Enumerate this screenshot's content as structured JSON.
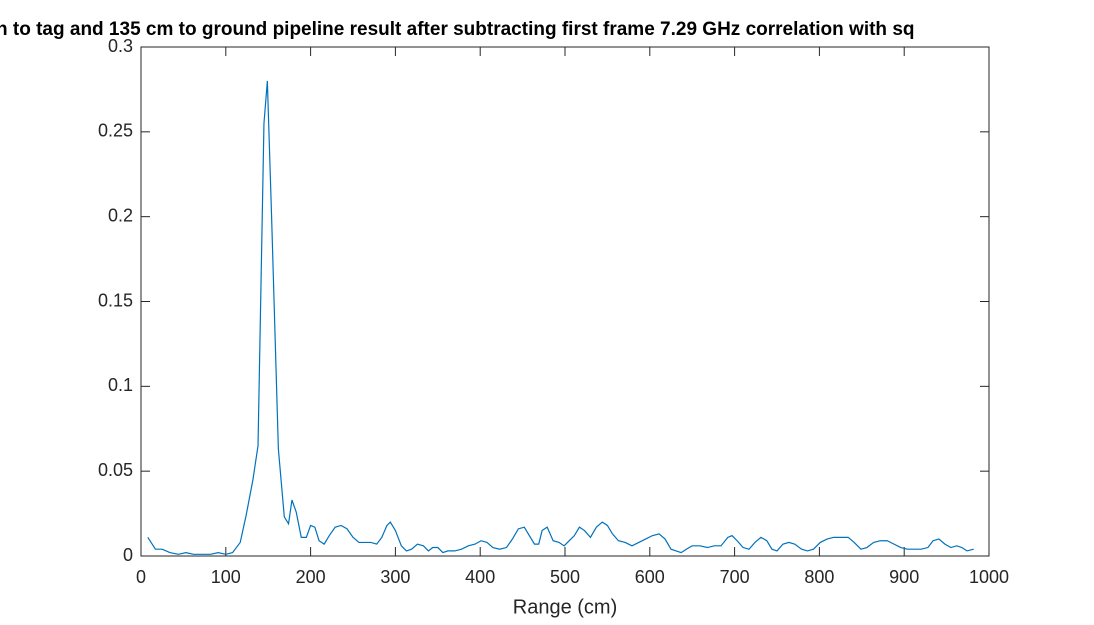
{
  "chart_data": {
    "type": "line",
    "title": "n to tag and 135 cm to ground pipeline result after subtracting first frame 7.29 GHz correlation with sq",
    "x_label": "Range (cm)",
    "x": [
      8,
      17,
      25,
      34,
      44,
      53,
      62,
      72,
      82,
      91,
      100,
      108,
      117,
      124,
      132,
      138,
      145,
      149,
      154,
      162,
      169,
      174,
      178,
      183,
      189,
      195,
      200,
      205,
      210,
      216,
      222,
      229,
      236,
      243,
      250,
      257,
      264,
      271,
      278,
      284,
      290,
      294,
      300,
      307,
      313,
      319,
      326,
      333,
      339,
      344,
      350,
      356,
      362,
      370,
      378,
      386,
      394,
      401,
      408,
      415,
      423,
      431,
      438,
      445,
      452,
      458,
      464,
      469,
      473,
      479,
      486,
      493,
      499,
      505,
      511,
      517,
      523,
      530,
      537,
      544,
      550,
      556,
      563,
      571,
      579,
      587,
      595,
      603,
      611,
      618,
      625,
      631,
      637,
      643,
      650,
      659,
      668,
      676,
      684,
      692,
      697,
      703,
      710,
      717,
      724,
      731,
      738,
      744,
      750,
      757,
      764,
      771,
      779,
      786,
      793,
      801,
      809,
      817,
      826,
      834,
      841,
      849,
      856,
      864,
      872,
      880,
      888,
      896,
      904,
      912,
      920,
      928,
      934,
      941,
      948,
      955,
      962,
      968,
      974,
      982
    ],
    "series": [
      {
        "color": "#0072bd",
        "values": [
          0.011,
          0.004,
          0.004,
          0.002,
          0.001,
          0.002,
          0.001,
          0.001,
          0.001,
          0.002,
          0.001,
          0.002,
          0.008,
          0.024,
          0.045,
          0.065,
          0.255,
          0.28,
          0.2,
          0.063,
          0.023,
          0.019,
          0.033,
          0.026,
          0.011,
          0.011,
          0.018,
          0.017,
          0.009,
          0.007,
          0.012,
          0.017,
          0.018,
          0.016,
          0.011,
          0.008,
          0.008,
          0.008,
          0.007,
          0.011,
          0.018,
          0.02,
          0.015,
          0.006,
          0.003,
          0.004,
          0.007,
          0.006,
          0.003,
          0.005,
          0.005,
          0.002,
          0.003,
          0.003,
          0.004,
          0.006,
          0.007,
          0.009,
          0.008,
          0.005,
          0.004,
          0.005,
          0.01,
          0.016,
          0.017,
          0.012,
          0.007,
          0.007,
          0.015,
          0.017,
          0.009,
          0.008,
          0.006,
          0.009,
          0.012,
          0.017,
          0.015,
          0.011,
          0.017,
          0.02,
          0.018,
          0.013,
          0.009,
          0.008,
          0.006,
          0.008,
          0.01,
          0.012,
          0.013,
          0.01,
          0.004,
          0.003,
          0.002,
          0.004,
          0.006,
          0.006,
          0.005,
          0.006,
          0.006,
          0.011,
          0.012,
          0.009,
          0.005,
          0.004,
          0.008,
          0.011,
          0.009,
          0.004,
          0.003,
          0.007,
          0.008,
          0.007,
          0.004,
          0.003,
          0.004,
          0.008,
          0.01,
          0.011,
          0.011,
          0.011,
          0.008,
          0.004,
          0.005,
          0.008,
          0.009,
          0.009,
          0.007,
          0.005,
          0.004,
          0.004,
          0.004,
          0.005,
          0.009,
          0.01,
          0.007,
          0.005,
          0.006,
          0.005,
          0.003,
          0.004
        ]
      }
    ],
    "xlim": [
      0,
      1000
    ],
    "xticks": [
      0,
      100,
      200,
      300,
      400,
      500,
      600,
      700,
      800,
      900,
      1000
    ],
    "ylim": [
      0,
      0.3
    ],
    "yticks": [
      0,
      0.05,
      0.1,
      0.15,
      0.2,
      0.25,
      0.3
    ]
  }
}
